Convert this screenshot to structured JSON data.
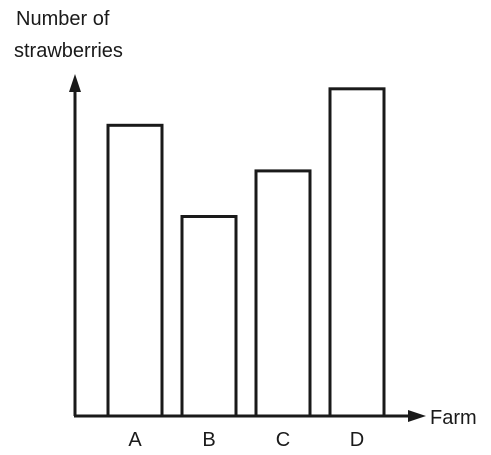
{
  "chart_data": {
    "type": "bar",
    "title": "",
    "ylabel_lines": [
      "Number of",
      "strawberries"
    ],
    "xlabel": "Farm",
    "categories": [
      "A",
      "B",
      "C",
      "D"
    ],
    "values": [
      255,
      175,
      215,
      287
    ],
    "ylim": [
      0,
      300
    ],
    "grid": false,
    "y_ticks_shown": false,
    "bar_fill": "#ffffff",
    "bar_stroke": "#1a1a1a",
    "axis_color": "#1a1a1a"
  }
}
